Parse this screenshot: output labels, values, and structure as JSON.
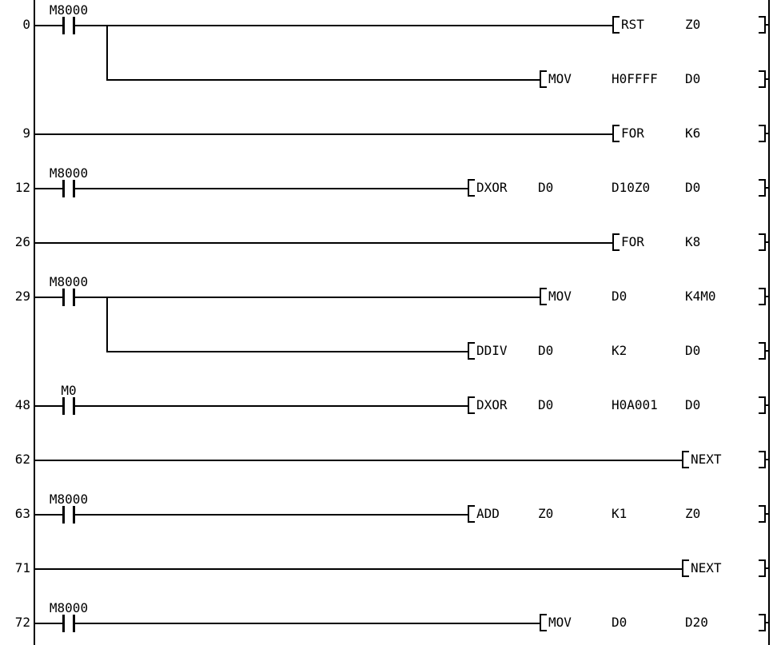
{
  "diagram": {
    "type": "plc-ladder",
    "background_color": "#ffffff",
    "line_color": "#000000",
    "left_rail": true,
    "right_rail": true,
    "rungs": [
      {
        "step": "0",
        "contact": "M8000",
        "branch": false,
        "instruction": {
          "name": "RST",
          "args": [
            "Z0"
          ]
        }
      },
      {
        "step": "",
        "contact": "",
        "branch": true,
        "instruction": {
          "name": "MOV",
          "args": [
            "H0FFFF",
            "D0"
          ]
        }
      },
      {
        "step": "9",
        "contact": "",
        "branch": false,
        "instruction": {
          "name": "FOR",
          "args": [
            "K6"
          ]
        }
      },
      {
        "step": "12",
        "contact": "M8000",
        "branch": false,
        "instruction": {
          "name": "DXOR",
          "args": [
            "D0",
            "D10Z0",
            "D0"
          ]
        }
      },
      {
        "step": "26",
        "contact": "",
        "branch": false,
        "instruction": {
          "name": "FOR",
          "args": [
            "K8"
          ]
        }
      },
      {
        "step": "29",
        "contact": "M8000",
        "branch": false,
        "instruction": {
          "name": "MOV",
          "args": [
            "D0",
            "K4M0"
          ]
        }
      },
      {
        "step": "",
        "contact": "",
        "branch": true,
        "instruction": {
          "name": "DDIV",
          "args": [
            "D0",
            "K2",
            "D0"
          ]
        }
      },
      {
        "step": "48",
        "contact": "M0",
        "branch": false,
        "instruction": {
          "name": "DXOR",
          "args": [
            "D0",
            "H0A001",
            "D0"
          ]
        }
      },
      {
        "step": "62",
        "contact": "",
        "branch": false,
        "instruction": {
          "name": "NEXT",
          "args": []
        }
      },
      {
        "step": "63",
        "contact": "M8000",
        "branch": false,
        "instruction": {
          "name": "ADD",
          "args": [
            "Z0",
            "K1",
            "Z0"
          ]
        }
      },
      {
        "step": "71",
        "contact": "",
        "branch": false,
        "instruction": {
          "name": "NEXT",
          "args": []
        }
      },
      {
        "step": "72",
        "contact": "M8000",
        "branch": false,
        "instruction": {
          "name": "MOV",
          "args": [
            "D0",
            "D20"
          ]
        }
      }
    ]
  }
}
